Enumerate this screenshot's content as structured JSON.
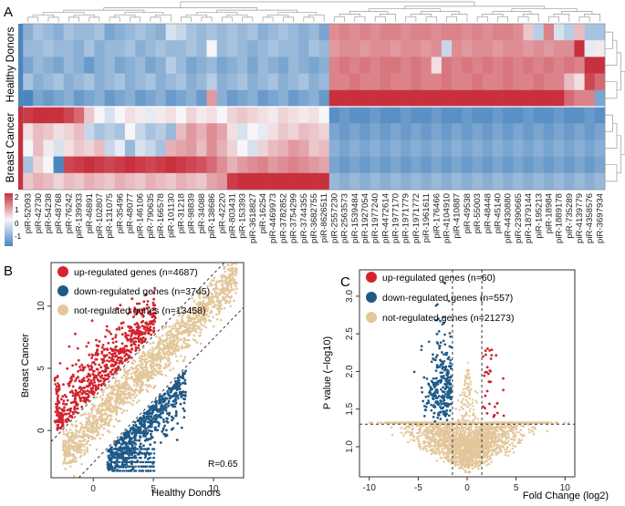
{
  "colors": {
    "high": "#c8303d",
    "mid": "#f6f6f8",
    "low": "#4a86c0",
    "up": "#d2242e",
    "down": "#1f5a87",
    "not": "#e3c79b",
    "dendro": "#9a9a9a",
    "axis": "#333333"
  },
  "panels": {
    "a": "A",
    "b": "B",
    "c": "C"
  },
  "chart_data": [
    {
      "type": "heatmap",
      "panel": "A",
      "row_groups": [
        {
          "label": "Healthy Donors",
          "rows": 5
        },
        {
          "label": "Breast Cancer",
          "rows": 5
        }
      ],
      "columns": [
        "piR-52093",
        "piR-42730",
        "piR-54238",
        "piR-48768",
        "piR-76242",
        "piR-139933",
        "piR-46891",
        "piR-102807",
        "piR-131075",
        "piR-35496",
        "piR-48077",
        "piR-146106",
        "piR-790635",
        "piR-166578",
        "piR-101130",
        "piR-31218",
        "piR-98839",
        "piR-34088",
        "piR-138686",
        "piR-42220",
        "piR-803431",
        "piR-153393",
        "piR-3618827",
        "piR-16254",
        "piR-4469973",
        "piR-3782852",
        "piR-3754299",
        "piR-3744355",
        "piR-3682755",
        "piR-8626511",
        "piR-2557230",
        "piR-2563573",
        "piR-1539484",
        "piR-1927054",
        "piR-1977240",
        "piR-4472614",
        "piR-1977170",
        "piR-1971779",
        "piR-1971772",
        "piR-1961611",
        "piR-176466",
        "piR-4104910",
        "piR-410887",
        "piR-49538",
        "piR-55003",
        "piR-48448",
        "piR-45140",
        "piR-4430880",
        "piR-2390665",
        "piR-1879144",
        "piR-195213",
        "piR-18984",
        "piR-1889178",
        "piR-735289",
        "piR-4139779",
        "piR-4358576",
        "piR-3697934"
      ],
      "values": [
        [
          -0.7,
          -0.5,
          -0.6,
          -0.7,
          -0.5,
          -0.6,
          -0.6,
          -0.5,
          -0.8,
          -0.7,
          -0.6,
          -0.5,
          -0.6,
          -0.7,
          -0.2,
          -0.3,
          -0.5,
          -0.6,
          -0.5,
          -0.6,
          -0.5,
          -0.6,
          -0.5,
          -0.7,
          -0.6,
          -0.5,
          -0.6,
          -0.7,
          -0.6,
          -0.8,
          0.9,
          1.0,
          0.9,
          1.0,
          0.9,
          1.0,
          1.0,
          0.9,
          1.0,
          1.0,
          0.9,
          1.0,
          1.0,
          0.9,
          1.0,
          0.9,
          1.0,
          1.0,
          0.9,
          0.4,
          -0.4,
          1.0,
          -0.2,
          -0.4,
          0.5,
          -0.5,
          -0.5
        ],
        [
          -0.6,
          -0.6,
          -0.5,
          -0.6,
          -0.6,
          -0.7,
          -0.5,
          -0.7,
          -0.6,
          -0.6,
          -0.5,
          -0.7,
          -0.6,
          -0.5,
          -0.6,
          -0.6,
          -0.5,
          -0.6,
          0.0,
          -0.6,
          -0.5,
          -0.6,
          -0.7,
          -0.6,
          -0.5,
          -0.6,
          -0.6,
          -0.7,
          -0.5,
          -0.6,
          0.8,
          0.9,
          0.9,
          0.8,
          0.9,
          0.9,
          0.8,
          0.9,
          0.9,
          0.8,
          0.9,
          -0.3,
          0.9,
          0.8,
          0.9,
          0.9,
          0.8,
          0.9,
          0.9,
          0.8,
          0.9,
          0.8,
          0.9,
          0.9,
          1.8,
          -0.1,
          0.1
        ],
        [
          -0.8,
          -0.6,
          -0.7,
          -0.8,
          -0.6,
          -0.7,
          -0.9,
          -0.7,
          -0.6,
          -0.8,
          -0.7,
          -0.6,
          -0.8,
          -0.7,
          -0.4,
          -0.6,
          -0.8,
          -0.7,
          -0.6,
          -0.8,
          -0.7,
          -0.6,
          -0.8,
          -0.6,
          -0.7,
          -0.8,
          -0.6,
          -0.7,
          -0.8,
          -0.7,
          1.0,
          1.1,
          1.0,
          1.1,
          1.0,
          1.1,
          1.1,
          1.0,
          1.1,
          1.0,
          0.2,
          1.1,
          1.0,
          1.1,
          1.0,
          1.1,
          1.0,
          1.1,
          1.0,
          1.1,
          1.0,
          1.1,
          1.0,
          1.1,
          1.0,
          2.0,
          2.0
        ],
        [
          -0.5,
          -0.7,
          -0.6,
          -0.5,
          -0.7,
          -0.6,
          -0.5,
          -0.7,
          -0.6,
          -0.5,
          -0.7,
          -0.6,
          -0.5,
          -0.7,
          -0.6,
          -0.5,
          -0.7,
          -0.6,
          -0.4,
          -0.7,
          -0.6,
          -0.5,
          -0.7,
          -0.6,
          -0.5,
          -0.7,
          -0.6,
          -0.5,
          -0.7,
          -0.6,
          1.0,
          1.0,
          1.1,
          1.0,
          1.0,
          1.1,
          1.0,
          1.0,
          1.1,
          1.0,
          1.0,
          1.1,
          1.0,
          1.0,
          1.1,
          1.0,
          1.0,
          1.1,
          1.0,
          1.0,
          1.1,
          1.0,
          1.0,
          0.5,
          0.2,
          1.5,
          1.2
        ],
        [
          -1.4,
          -0.8,
          -0.9,
          -0.8,
          -0.7,
          -0.9,
          -0.8,
          -0.7,
          -0.9,
          -0.8,
          -0.7,
          -0.9,
          -0.8,
          -0.7,
          -0.9,
          -0.8,
          -0.7,
          -0.9,
          0.8,
          -0.7,
          -0.9,
          -0.8,
          -0.7,
          -0.9,
          -0.8,
          -0.7,
          -0.9,
          -0.8,
          -0.7,
          -0.9,
          1.7,
          1.8,
          1.7,
          1.8,
          1.7,
          1.8,
          1.7,
          1.8,
          1.7,
          1.8,
          1.7,
          1.8,
          1.7,
          1.8,
          1.7,
          1.8,
          1.7,
          1.8,
          1.7,
          1.8,
          1.7,
          1.8,
          1.7,
          1.2,
          1.0,
          1.0,
          -0.8
        ],
        [
          1.6,
          1.7,
          1.8,
          1.7,
          1.5,
          1.2,
          0.4,
          0.0,
          -0.2,
          0.0,
          0.2,
          0.1,
          -0.1,
          0.1,
          0.2,
          0.0,
          0.3,
          0.1,
          0.2,
          0.0,
          0.3,
          0.4,
          0.3,
          0.2,
          0.1,
          0.3,
          0.2,
          0.1,
          0.2,
          0.0,
          -1.0,
          -0.9,
          -1.0,
          -1.0,
          -0.9,
          -1.0,
          -1.0,
          -0.9,
          -1.0,
          -1.0,
          -0.9,
          -1.0,
          -1.0,
          -0.9,
          -1.0,
          -1.0,
          -0.9,
          -1.0,
          -1.0,
          -0.9,
          -1.0,
          -1.0,
          -0.9,
          -1.0,
          -1.0,
          -0.9,
          -1.0
        ],
        [
          0.2,
          0.5,
          0.4,
          0.2,
          0.3,
          0.5,
          -0.3,
          -0.5,
          -0.4,
          -0.5,
          0.0,
          -0.3,
          -0.5,
          -0.4,
          -0.6,
          0.5,
          0.8,
          0.6,
          0.9,
          0.7,
          0.2,
          -0.2,
          0.0,
          -0.1,
          0.2,
          0.4,
          0.3,
          0.5,
          0.4,
          0.3,
          -0.8,
          -0.9,
          -0.8,
          -0.9,
          -0.8,
          -0.9,
          -0.8,
          -0.9,
          -0.8,
          -0.9,
          -0.8,
          -0.9,
          -0.8,
          -0.9,
          -0.8,
          -0.9,
          -0.8,
          -0.9,
          -0.8,
          -0.9,
          -0.8,
          -0.9,
          -0.8,
          -0.9,
          -0.8,
          -0.9,
          -0.8
        ],
        [
          0.0,
          0.5,
          0.1,
          -0.2,
          0.2,
          0.4,
          0.3,
          0.5,
          -0.3,
          -0.1,
          -0.6,
          -0.2,
          -0.3,
          -0.5,
          0.6,
          0.7,
          0.8,
          0.5,
          0.9,
          0.6,
          0.3,
          0.0,
          -0.2,
          0.3,
          0.5,
          0.6,
          0.8,
          0.7,
          0.4,
          0.5,
          -0.7,
          -0.8,
          -0.7,
          -0.8,
          -0.7,
          -0.8,
          -0.7,
          -0.8,
          -0.7,
          -0.8,
          -0.7,
          -0.8,
          -0.7,
          -0.8,
          -0.7,
          -0.8,
          -0.7,
          -0.8,
          -0.7,
          -0.8,
          -0.7,
          -0.8,
          -0.7,
          -0.8,
          -0.7,
          -0.8,
          -0.7
        ],
        [
          -0.5,
          0.3,
          0.0,
          -1.3,
          1.5,
          1.6,
          1.7,
          1.6,
          1.5,
          1.6,
          1.7,
          1.6,
          1.5,
          1.6,
          1.7,
          1.6,
          1.5,
          1.4,
          1.2,
          0.9,
          0.6,
          0.8,
          0.9,
          1.0,
          0.8,
          0.9,
          1.0,
          0.9,
          0.8,
          0.7,
          -0.8,
          -0.9,
          -0.8,
          -0.9,
          -0.8,
          -0.9,
          -0.8,
          -0.9,
          -0.8,
          -0.9,
          -0.8,
          -0.9,
          -0.8,
          -0.9,
          -0.8,
          -0.9,
          -0.8,
          -0.9,
          -0.8,
          -0.9,
          -0.8,
          -0.9,
          -0.8,
          -0.9,
          -0.8,
          -0.9,
          -0.8
        ],
        [
          0.4,
          0.6,
          0.5,
          0.3,
          0.5,
          0.4,
          0.6,
          0.5,
          0.4,
          0.6,
          0.5,
          0.4,
          0.6,
          0.5,
          0.4,
          0.6,
          0.5,
          0.4,
          0.7,
          0.8,
          1.6,
          1.7,
          1.8,
          1.7,
          1.8,
          1.7,
          1.8,
          1.7,
          1.8,
          1.7,
          -0.6,
          -0.7,
          -0.6,
          -0.7,
          -0.6,
          -0.7,
          -0.6,
          -0.7,
          -0.6,
          -0.7,
          -0.6,
          -0.7,
          -0.6,
          -0.7,
          -0.6,
          -0.7,
          -0.6,
          -0.7,
          -0.6,
          -0.7,
          -0.6,
          -0.7,
          -0.6,
          -0.7,
          -0.6,
          -0.7,
          -0.6
        ]
      ],
      "legend": {
        "ticks": [
          "2",
          "1",
          "0",
          "-1"
        ],
        "range": [
          -1.5,
          2.5
        ]
      }
    },
    {
      "type": "scatter",
      "panel": "B",
      "xlabel": "Healthy Donors",
      "ylabel": "Breast Cancer",
      "xlim": [
        -3.5,
        12.5
      ],
      "ylim": [
        -3.8,
        13.5
      ],
      "xticks": [
        0,
        5,
        10
      ],
      "yticks": [
        0,
        5,
        10
      ],
      "annotation": "R=0.65",
      "reference_lines": [
        {
          "intercept": 2.6,
          "slope": 1
        },
        {
          "intercept": -2.6,
          "slope": 1
        }
      ],
      "legend": [
        {
          "key": "up",
          "label": "up-regulated genes (n=4687)"
        },
        {
          "key": "down",
          "label": "down-regulated genes (n=3745)"
        },
        {
          "key": "not",
          "label": "not-regulated genes (n=13458)"
        }
      ]
    },
    {
      "type": "scatter",
      "panel": "C",
      "xlabel": "Fold Change (log2)",
      "ylabel": "P value (−log10)",
      "xlim": [
        -11,
        11
      ],
      "ylim": [
        0.6,
        3.35
      ],
      "xticks": [
        -10,
        -5,
        0,
        5,
        10
      ],
      "yticks": [
        1.0,
        1.5,
        2.0,
        2.5,
        3.0
      ],
      "ytick_labels": [
        "1.0",
        "1.5",
        "2.0",
        "2.5",
        "3.0"
      ],
      "threshold_lines": {
        "x": [
          -1.5,
          1.5
        ],
        "y": 1.3
      },
      "legend": [
        {
          "key": "up",
          "label": "up-regulated genes (n=60)"
        },
        {
          "key": "down",
          "label": "down-regulated genes (n=557)"
        },
        {
          "key": "not",
          "label": "not-regulated genes (n=21273)"
        }
      ]
    }
  ]
}
